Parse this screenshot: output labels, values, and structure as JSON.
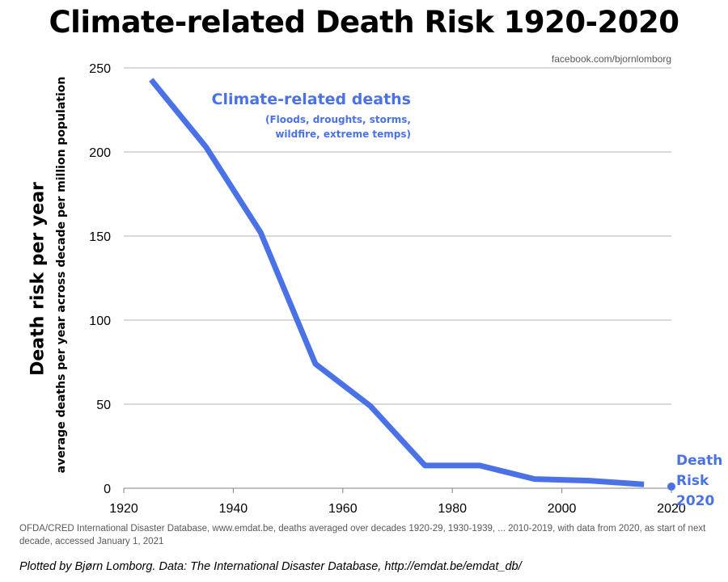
{
  "chart_data": {
    "type": "line",
    "title": "Climate-related Death Risk 1920-2020",
    "ylabel": "Death risk per year",
    "ylabel_sub": "average deaths per year across decade per million population",
    "xlabel": "",
    "xlim": [
      1920,
      2020
    ],
    "ylim": [
      0,
      250
    ],
    "x_ticks": [
      "1920",
      "1940",
      "1960",
      "1980",
      "2000",
      "2020"
    ],
    "y_ticks": [
      "0",
      "50",
      "100",
      "150",
      "200",
      "250"
    ],
    "grid": "horizontal",
    "series": [
      {
        "name": "Climate-related deaths",
        "subtitle_lines": [
          "(Floods, droughts, storms,",
          "wildfire, extreme temps)"
        ],
        "color": "#4a72e6",
        "x": [
          1925,
          1935,
          1945,
          1955,
          1965,
          1975,
          1985,
          1995,
          2005,
          2015
        ],
        "y": [
          243,
          203,
          152,
          74,
          49,
          13.5,
          13.5,
          5.5,
          4.5,
          2.3
        ]
      }
    ],
    "highlight_point": {
      "x": 2020,
      "y": 1.0,
      "label_lines": [
        "Death",
        "Risk",
        "2020"
      ],
      "color": "#4a72e6"
    },
    "credit": "facebook.com/bjornlomborg",
    "source_note": "OFDA/CRED International Disaster Database, www.emdat.be, deaths averaged over decades 1920-29, 1930-1939, ... 2010-2019, with data from 2020, as start of next decade, accessed January 1, 2021",
    "footer": "Plotted by Bjørn Lomborg. Data: The International Disaster Database, http://emdat.be/emdat_db/"
  }
}
